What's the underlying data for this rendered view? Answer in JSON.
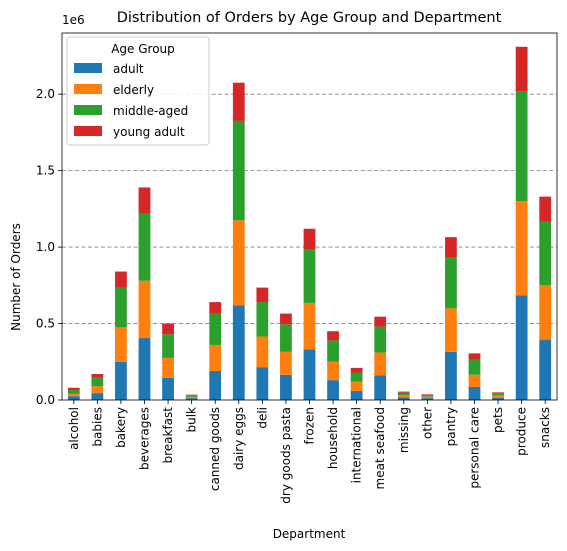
{
  "chart_data": {
    "type": "bar",
    "stacked": true,
    "title": "Distribution of Orders by Age Group and Department",
    "xlabel": "Department",
    "ylabel": "Number of Orders",
    "y_offset_label": "1e6",
    "ylim": [
      0,
      2400000
    ],
    "yticks": [
      0,
      500000,
      1000000,
      1500000,
      2000000
    ],
    "ytick_labels": [
      "0.0",
      "0.5",
      "1.0",
      "1.5",
      "2.0"
    ],
    "grid": "horizontal dashed",
    "legend": {
      "title": "Age Group",
      "placement": "top-left"
    },
    "categories": [
      "alcohol",
      "babies",
      "bakery",
      "beverages",
      "breakfast",
      "bulk",
      "canned goods",
      "dairy eggs",
      "deli",
      "dry goods pasta",
      "frozen",
      "household",
      "international",
      "meat seafood",
      "missing",
      "other",
      "pantry",
      "personal care",
      "pets",
      "produce",
      "snacks"
    ],
    "series": [
      {
        "name": "adult",
        "color": "#1f77b4",
        "values": [
          25000,
          45000,
          250000,
          405000,
          145000,
          12000,
          190000,
          620000,
          215000,
          165000,
          330000,
          130000,
          60000,
          160000,
          17000,
          12000,
          315000,
          85000,
          15000,
          685000,
          395000
        ]
      },
      {
        "name": "elderly",
        "color": "#ff7f0e",
        "values": [
          15000,
          45000,
          225000,
          375000,
          130000,
          9000,
          170000,
          555000,
          200000,
          150000,
          305000,
          120000,
          60000,
          150000,
          14000,
          10000,
          285000,
          80000,
          15000,
          615000,
          355000
        ]
      },
      {
        "name": "middle-aged",
        "color": "#2ca02c",
        "values": [
          25000,
          55000,
          260000,
          440000,
          155000,
          10000,
          205000,
          650000,
          225000,
          180000,
          350000,
          140000,
          60000,
          170000,
          17000,
          10000,
          330000,
          100000,
          15000,
          720000,
          415000
        ]
      },
      {
        "name": "young adult",
        "color": "#d62728",
        "values": [
          15000,
          25000,
          105000,
          170000,
          70000,
          4000,
          75000,
          250000,
          95000,
          70000,
          135000,
          60000,
          30000,
          65000,
          7000,
          5000,
          135000,
          40000,
          5000,
          290000,
          165000
        ]
      }
    ]
  }
}
